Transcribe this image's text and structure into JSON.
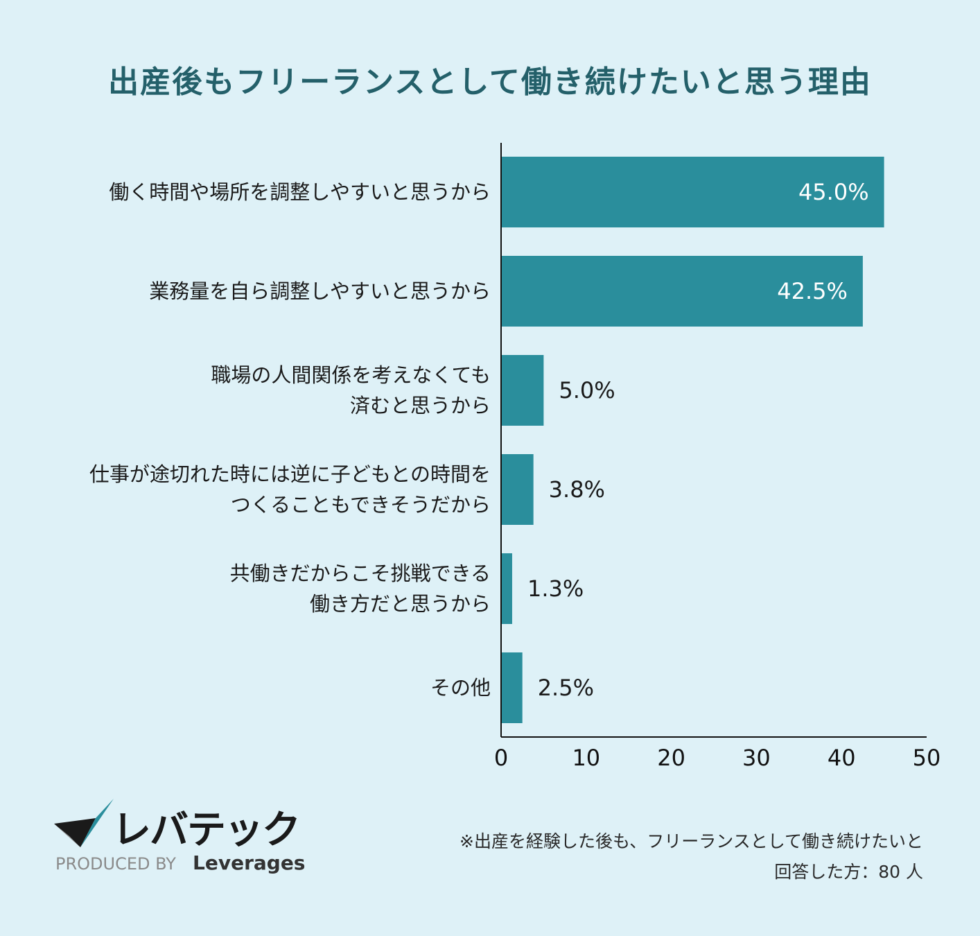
{
  "chart_data": {
    "type": "bar",
    "orientation": "horizontal",
    "title": "出産後もフリーランスとして働き続けたいと思う理由",
    "categories": [
      [
        "働く時間や場所を調整しやすいと思うから"
      ],
      [
        "業務量を自ら調整しやすいと思うから"
      ],
      [
        "職場の人間関係を考えなくても",
        "済むと思うから"
      ],
      [
        "仕事が途切れた時には逆に子どもとの時間を",
        "つくることもできそうだから"
      ],
      [
        "共働きだからこそ挑戦できる",
        "働き方だと思うから"
      ],
      [
        "その他"
      ]
    ],
    "values": [
      45.0,
      42.5,
      5.0,
      3.8,
      1.3,
      2.5
    ],
    "value_labels": [
      "45.0%",
      "42.5%",
      "5.0%",
      "3.8%",
      "1.3%",
      "2.5%"
    ],
    "xlim": [
      0,
      50
    ],
    "xticks": [
      0,
      10,
      20,
      30,
      40,
      50
    ],
    "xlabel": "",
    "ylabel": "",
    "grid": false,
    "bar_color": "#2a8e9c"
  },
  "logo": {
    "name": "レバテック",
    "produced_by": "PRODUCED BY",
    "brand": "Leverages"
  },
  "footnote": {
    "line1": "※出産を経験した後も、フリーランスとして働き続けたいと",
    "line2": "回答した方：80 人"
  },
  "colors": {
    "background": "#def1f7",
    "title": "#24606a",
    "bar": "#2a8e9c",
    "logo_teal": "#2a8e9c",
    "logo_dark": "#1a1a1a",
    "logo_grey": "#9a9a9a"
  }
}
